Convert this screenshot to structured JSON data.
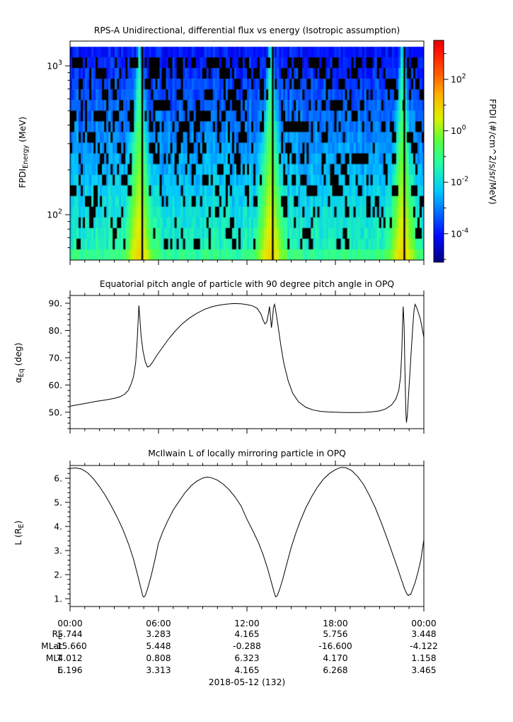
{
  "figure": {
    "background": "#ffffff",
    "line_color": "#000000"
  },
  "chart_data": [
    {
      "type": "heatmap",
      "title": "RPS-A Unidirectional, differential flux vs energy (Isotropic assumption)",
      "ylabel": "FPDI_{Energy} (MeV)",
      "y_scale": "log",
      "energy_range_mev": [
        50,
        1340
      ],
      "y_ticks": [
        {
          "v": 1000,
          "label": "10^{3}"
        },
        {
          "v": 100,
          "label": "10^{2}"
        }
      ],
      "y_minor_ticks": [
        60,
        70,
        80,
        90,
        200,
        300,
        400,
        500,
        600,
        700,
        800,
        900
      ],
      "time_range_hours": [
        0,
        24
      ],
      "x_major_tick_hours": [
        0,
        6,
        12,
        18,
        24
      ],
      "x_minor_tick_step_hours": 1,
      "colorbar": {
        "label": "FPDI (#/cm^2/s/sr/MeV)",
        "scale": "log",
        "log_range": [
          -5.1,
          3.5
        ],
        "ticks": [
          {
            "exp": 2,
            "label": "10^{2}"
          },
          {
            "exp": 0,
            "label": "10^{0}"
          },
          {
            "exp": -2,
            "label": "10^{-2}"
          },
          {
            "exp": -4,
            "label": "10^{-4}"
          }
        ],
        "minor_tick_exps": [
          3,
          1,
          -1,
          -3,
          -5
        ],
        "colormap": "jet",
        "palette": [
          [
            0,
            "#000082"
          ],
          [
            0.12,
            "#000AFF"
          ],
          [
            0.32,
            "#00C8FF"
          ],
          [
            0.45,
            "#28FFA0"
          ],
          [
            0.55,
            "#5AFF3C"
          ],
          [
            0.65,
            "#DCF000"
          ],
          [
            0.75,
            "#FFB400"
          ],
          [
            0.85,
            "#FF5A00"
          ],
          [
            0.95,
            "#FF1400"
          ],
          [
            1,
            "#E60000"
          ]
        ]
      },
      "structure": {
        "description": "speckled blue/cyan flux background with black data dropouts; bright funnel-shaped enhancements (green-yellow-orange, widening toward low energy) at each perigee pass; solid blue band at highest energy; continuous green band at lowest energy; narrow black data-gap stripes at perigee centers",
        "perigee_funnel_hours": [
          4.7,
          13.6,
          22.55
        ],
        "gap_stripe_hours": [
          4.9,
          13.75,
          22.68
        ],
        "background_logflux_top": -4.0,
        "background_logflux_bottom": -1.4,
        "bottom_row_logflux": -1.1,
        "funnel_center_logflux_top": -1.6,
        "funnel_center_logflux_bottom": 0.9
      }
    },
    {
      "type": "line",
      "title": "Equatorial pitch angle of particle with 90 degree pitch angle in OPQ",
      "ylabel": "α_{Eq} (deg)",
      "ylim": [
        44.0,
        92.9
      ],
      "y_ticks": [
        {
          "v": 90,
          "label": "90."
        },
        {
          "v": 80,
          "label": "80."
        },
        {
          "v": 70,
          "label": "70."
        },
        {
          "v": 60,
          "label": "60."
        },
        {
          "v": 50,
          "label": "50."
        }
      ],
      "y_minor_tick_step": 2,
      "series": [
        {
          "name": "alpha_eq_deg",
          "points": [
            [
              0,
              52.2
            ],
            [
              0.6,
              52.8
            ],
            [
              1.2,
              53.4
            ],
            [
              1.8,
              54.0
            ],
            [
              2.4,
              54.5
            ],
            [
              3.0,
              55.1
            ],
            [
              3.4,
              55.7
            ],
            [
              3.7,
              56.6
            ],
            [
              3.95,
              58
            ],
            [
              4.15,
              60.5
            ],
            [
              4.3,
              63
            ],
            [
              4.45,
              68
            ],
            [
              4.55,
              76
            ],
            [
              4.62,
              84
            ],
            [
              4.67,
              89.2
            ],
            [
              4.73,
              85
            ],
            [
              4.82,
              78
            ],
            [
              4.95,
              72.5
            ],
            [
              5.1,
              68.5
            ],
            [
              5.25,
              66.6
            ],
            [
              5.4,
              66.9
            ],
            [
              5.6,
              68.4
            ],
            [
              5.9,
              71
            ],
            [
              6.3,
              74
            ],
            [
              6.7,
              77
            ],
            [
              7.1,
              79.6
            ],
            [
              7.6,
              82.4
            ],
            [
              8.1,
              84.6
            ],
            [
              8.6,
              86.3
            ],
            [
              9.1,
              87.7
            ],
            [
              9.6,
              88.7
            ],
            [
              10.1,
              89.3
            ],
            [
              10.6,
              89.7
            ],
            [
              11.1,
              89.9
            ],
            [
              11.6,
              89.8
            ],
            [
              12.0,
              89.5
            ],
            [
              12.4,
              89.0
            ],
            [
              12.7,
              88.1
            ],
            [
              12.95,
              86
            ],
            [
              13.1,
              83.8
            ],
            [
              13.22,
              82.4
            ],
            [
              13.35,
              83.2
            ],
            [
              13.45,
              86
            ],
            [
              13.53,
              88.8
            ],
            [
              13.6,
              85
            ],
            [
              13.66,
              81
            ],
            [
              13.73,
              84
            ],
            [
              13.8,
              88.5
            ],
            [
              13.87,
              89.6
            ],
            [
              13.95,
              87.5
            ],
            [
              14.1,
              82
            ],
            [
              14.3,
              74.5
            ],
            [
              14.5,
              68
            ],
            [
              14.8,
              61.5
            ],
            [
              15.1,
              57
            ],
            [
              15.5,
              53.8
            ],
            [
              16,
              51.8
            ],
            [
              16.5,
              50.8
            ],
            [
              17,
              50.3
            ],
            [
              17.5,
              50.1
            ],
            [
              18,
              50.0
            ],
            [
              18.5,
              49.93
            ],
            [
              19,
              49.9
            ],
            [
              19.5,
              49.9
            ],
            [
              20,
              49.95
            ],
            [
              20.5,
              50.15
            ],
            [
              21,
              50.5
            ],
            [
              21.4,
              51.2
            ],
            [
              21.8,
              52.6
            ],
            [
              22.1,
              54.8
            ],
            [
              22.3,
              58
            ],
            [
              22.42,
              63
            ],
            [
              22.5,
              72
            ],
            [
              22.56,
              83
            ],
            [
              22.6,
              88.8
            ],
            [
              22.66,
              82
            ],
            [
              22.72,
              65
            ],
            [
              22.78,
              50
            ],
            [
              22.82,
              46.2
            ],
            [
              22.88,
              49
            ],
            [
              22.96,
              56
            ],
            [
              23.05,
              64
            ],
            [
              23.15,
              73
            ],
            [
              23.25,
              81.5
            ],
            [
              23.33,
              87
            ],
            [
              23.4,
              89.6
            ],
            [
              23.5,
              88.6
            ],
            [
              23.6,
              87
            ],
            [
              23.75,
              84.5
            ],
            [
              23.88,
              81
            ],
            [
              24,
              77.5
            ]
          ]
        }
      ]
    },
    {
      "type": "line",
      "title": "McIlwain L of locally mirroring particle in OPQ",
      "ylabel": "L (R_{E})",
      "ylim": [
        0.68,
        6.53
      ],
      "y_ticks": [
        {
          "v": 6,
          "label": "6."
        },
        {
          "v": 5,
          "label": "5."
        },
        {
          "v": 4,
          "label": "4."
        },
        {
          "v": 3,
          "label": "3."
        },
        {
          "v": 2,
          "label": "2."
        },
        {
          "v": 1,
          "label": "1."
        }
      ],
      "y_minor_tick_step": 0.2,
      "series": [
        {
          "name": "mcilwain_L_RE",
          "points": [
            [
              0,
              6.41
            ],
            [
              0.4,
              6.43
            ],
            [
              0.8,
              6.38
            ],
            [
              1.2,
              6.22
            ],
            [
              1.6,
              5.97
            ],
            [
              2.0,
              5.65
            ],
            [
              2.4,
              5.28
            ],
            [
              2.8,
              4.85
            ],
            [
              3.2,
              4.38
            ],
            [
              3.6,
              3.85
            ],
            [
              4.0,
              3.22
            ],
            [
              4.3,
              2.65
            ],
            [
              4.6,
              1.95
            ],
            [
              4.8,
              1.45
            ],
            [
              4.93,
              1.12
            ],
            [
              5.0,
              1.07
            ],
            [
              5.1,
              1.13
            ],
            [
              5.25,
              1.4
            ],
            [
              5.5,
              1.95
            ],
            [
              5.75,
              2.6
            ],
            [
              6.0,
              3.31
            ],
            [
              6.3,
              3.8
            ],
            [
              6.6,
              4.2
            ],
            [
              7.0,
              4.68
            ],
            [
              7.4,
              5.05
            ],
            [
              7.8,
              5.4
            ],
            [
              8.2,
              5.68
            ],
            [
              8.6,
              5.88
            ],
            [
              9.0,
              6.01
            ],
            [
              9.3,
              6.05
            ],
            [
              9.6,
              6.02
            ],
            [
              10.0,
              5.92
            ],
            [
              10.4,
              5.75
            ],
            [
              10.8,
              5.52
            ],
            [
              11.2,
              5.22
            ],
            [
              11.6,
              4.85
            ],
            [
              12.0,
              4.3
            ],
            [
              12.4,
              3.82
            ],
            [
              12.8,
              3.3
            ],
            [
              13.1,
              2.82
            ],
            [
              13.4,
              2.25
            ],
            [
              13.65,
              1.7
            ],
            [
              13.85,
              1.25
            ],
            [
              13.95,
              1.08
            ],
            [
              14.05,
              1.12
            ],
            [
              14.2,
              1.35
            ],
            [
              14.45,
              1.85
            ],
            [
              14.7,
              2.45
            ],
            [
              15.0,
              3.12
            ],
            [
              15.3,
              3.7
            ],
            [
              15.6,
              4.2
            ],
            [
              16.0,
              4.78
            ],
            [
              16.4,
              5.25
            ],
            [
              16.8,
              5.65
            ],
            [
              17.2,
              5.97
            ],
            [
              17.6,
              6.2
            ],
            [
              18.0,
              6.36
            ],
            [
              18.35,
              6.45
            ],
            [
              18.7,
              6.44
            ],
            [
              19.1,
              6.32
            ],
            [
              19.5,
              6.08
            ],
            [
              19.9,
              5.75
            ],
            [
              20.3,
              5.3
            ],
            [
              20.7,
              4.78
            ],
            [
              21.1,
              4.18
            ],
            [
              21.5,
              3.52
            ],
            [
              21.9,
              2.82
            ],
            [
              22.2,
              2.3
            ],
            [
              22.5,
              1.75
            ],
            [
              22.7,
              1.4
            ],
            [
              22.85,
              1.2
            ],
            [
              22.95,
              1.13
            ],
            [
              23.02,
              1.18
            ],
            [
              23.1,
              1.17
            ],
            [
              23.2,
              1.32
            ],
            [
              23.4,
              1.65
            ],
            [
              23.6,
              2.1
            ],
            [
              23.8,
              2.62
            ],
            [
              24,
              3.45
            ]
          ]
        }
      ]
    }
  ],
  "bottom_axis": {
    "time_ticks": [
      "00:00",
      "06:00",
      "12:00",
      "18:00",
      "00:00"
    ],
    "rows": [
      {
        "label": "R_{E}",
        "values": [
          "5.744",
          "3.283",
          "4.165",
          "5.756",
          "3.448"
        ]
      },
      {
        "label": "MLat",
        "values": [
          "-15.660",
          "5.448",
          "-0.288",
          "-16.600",
          "-4.122"
        ]
      },
      {
        "label": "MLT",
        "values": [
          "4.012",
          "0.808",
          "6.323",
          "4.170",
          "1.158"
        ]
      },
      {
        "label": "L",
        "values": [
          "6.196",
          "3.313",
          "4.165",
          "6.268",
          "3.465"
        ]
      }
    ],
    "date_label": "2018-05-12 (132)"
  }
}
